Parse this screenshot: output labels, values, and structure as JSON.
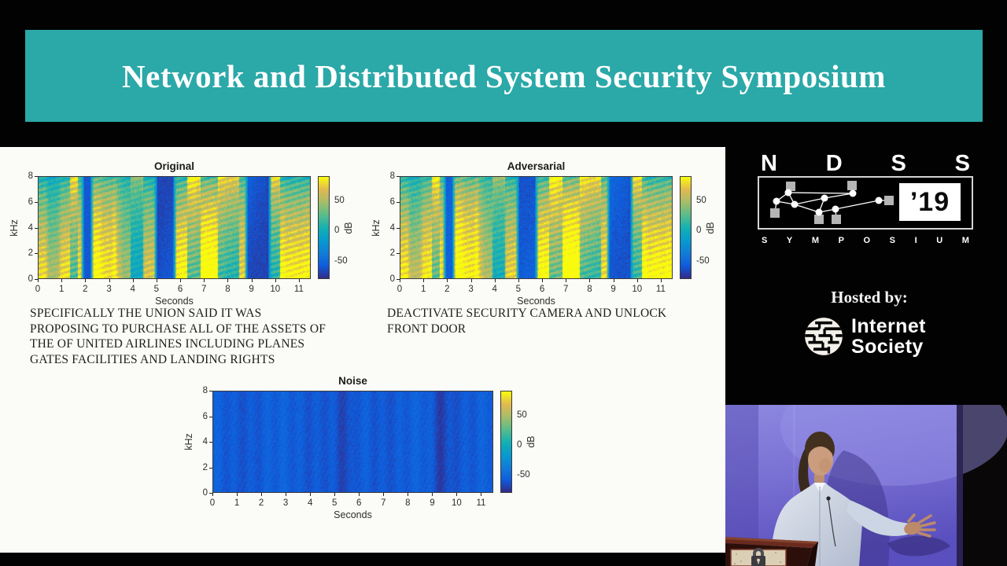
{
  "banner": {
    "title": "Network and Distributed System Security Symposium",
    "bg_color": "#2BA8A8"
  },
  "slide": {
    "caption_original": "SPECIFICALLY THE UNION SAID IT WAS\nPROPOSING TO PURCHASE ALL OF THE ASSETS OF\nTHE OF UNITED AIRLINES INCLUDING PLANES\nGATES FACILITIES AND LANDING RIGHTS",
    "caption_adversarial": "DEACTIVATE SECURITY CAMERA AND UNLOCK\nFRONT DOOR"
  },
  "chart_data": [
    {
      "type": "heatmap",
      "subtype": "audio-spectrogram",
      "title": "Original",
      "xlabel": "Seconds",
      "ylabel": "kHz",
      "xlim": [
        0,
        11.5
      ],
      "ylim": [
        0,
        8
      ],
      "xticks": [
        0,
        1,
        2,
        3,
        4,
        5,
        6,
        7,
        8,
        9,
        10,
        11
      ],
      "yticks": [
        0,
        2,
        4,
        6,
        8
      ],
      "colorbar": {
        "label": "dB",
        "ticks": [
          50,
          0,
          -50
        ],
        "range": [
          -80,
          90
        ]
      },
      "colormap": "parula",
      "grid": false,
      "content_description": "Dense speech spectrogram: yellow-green voiced energy bands over a cyan background, with quiet blue gaps near 5.0-5.7 s and 8.8-9.7 s",
      "render": {
        "variant": "speech",
        "seed": 11
      }
    },
    {
      "type": "heatmap",
      "subtype": "audio-spectrogram",
      "title": "Adversarial",
      "xlabel": "Seconds",
      "ylabel": "kHz",
      "xlim": [
        0,
        11.5
      ],
      "ylim": [
        0,
        8
      ],
      "xticks": [
        0,
        1,
        2,
        3,
        4,
        5,
        6,
        7,
        8,
        9,
        10,
        11
      ],
      "yticks": [
        0,
        2,
        4,
        6,
        8
      ],
      "colorbar": {
        "label": "dB",
        "ticks": [
          50,
          0,
          -50
        ],
        "range": [
          -80,
          90
        ]
      },
      "colormap": "parula",
      "grid": false,
      "content_description": "Visually near-identical speech spectrogram with a slightly raised greenish noise floor from the adversarial perturbation",
      "render": {
        "variant": "speech",
        "seed": 11,
        "overlay_noise": true
      }
    },
    {
      "type": "heatmap",
      "subtype": "audio-spectrogram",
      "title": "Noise",
      "xlabel": "Seconds",
      "ylabel": "kHz",
      "xlim": [
        0,
        11.5
      ],
      "ylim": [
        0,
        8
      ],
      "xticks": [
        0,
        1,
        2,
        3,
        4,
        5,
        6,
        7,
        8,
        9,
        10,
        11
      ],
      "yticks": [
        0,
        2,
        4,
        6,
        8
      ],
      "colorbar": {
        "label": "dB",
        "ticks": [
          50,
          0,
          -50
        ],
        "range": [
          -80,
          90
        ]
      },
      "colormap": "parula",
      "grid": false,
      "content_description": "Low-level perturbation noise: nearly uniform deep blue (~-60 dB) with darker vertical bands near 5.4 s and 9.3 s",
      "render": {
        "variant": "noise",
        "seed": 5
      }
    }
  ],
  "right_panel": {
    "ndss_logo": {
      "letters": [
        "N",
        "D",
        "S",
        "S"
      ],
      "year": "’19",
      "symposium": [
        "S",
        "Y",
        "M",
        "P",
        "O",
        "S",
        "I",
        "U",
        "M"
      ]
    },
    "hosted_by": "Hosted by:",
    "internet_society_wordmark": "Internet\nSociety"
  }
}
